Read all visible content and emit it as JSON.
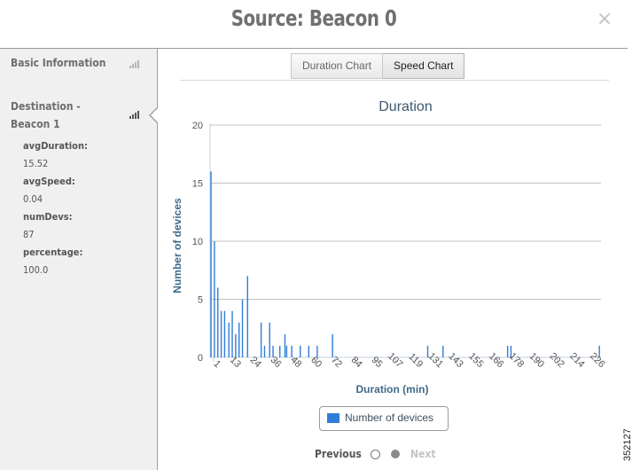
{
  "header": {
    "title": "Source: Beacon 0",
    "close_glyph": "×"
  },
  "sidebar": {
    "items": [
      {
        "label": "Basic Information",
        "icon": "signal-bars-icon",
        "active": false
      },
      {
        "label_line1": "Destination -",
        "label_line2": "Beacon 1",
        "icon": "signal-bars-icon",
        "active": true
      }
    ],
    "details": [
      {
        "key": "avgDuration:",
        "value": "15.52"
      },
      {
        "key": "avgSpeed:",
        "value": "0.04"
      },
      {
        "key": "numDevs:",
        "value": "87"
      },
      {
        "key": "percentage:",
        "value": "100.0"
      }
    ]
  },
  "tabs": [
    {
      "label": "Duration Chart",
      "active": false
    },
    {
      "label": "Speed Chart",
      "active": true
    }
  ],
  "chart_data": {
    "type": "bar",
    "title": "Duration",
    "xlabel": "Duration (min)",
    "ylabel": "Number of devices",
    "ylim": [
      0,
      20
    ],
    "yticks": [
      0,
      5,
      10,
      15,
      20
    ],
    "xlim": [
      0,
      230
    ],
    "xtick_labels": [
      1,
      13,
      24,
      36,
      48,
      60,
      72,
      84,
      95,
      107,
      119,
      131,
      143,
      155,
      166,
      178,
      190,
      202,
      214,
      226
    ],
    "grid": true,
    "color": "#2f7ed8",
    "series": [
      {
        "name": "Number of devices",
        "points": [
          {
            "x": 0.5,
            "y": 16
          },
          {
            "x": 2.5,
            "y": 10
          },
          {
            "x": 4.5,
            "y": 6
          },
          {
            "x": 6.5,
            "y": 4
          },
          {
            "x": 8.5,
            "y": 4
          },
          {
            "x": 11,
            "y": 3
          },
          {
            "x": 13,
            "y": 4
          },
          {
            "x": 15,
            "y": 2
          },
          {
            "x": 17,
            "y": 3
          },
          {
            "x": 19,
            "y": 5
          },
          {
            "x": 22,
            "y": 7
          },
          {
            "x": 30,
            "y": 3
          },
          {
            "x": 32,
            "y": 1
          },
          {
            "x": 35,
            "y": 3
          },
          {
            "x": 37,
            "y": 1
          },
          {
            "x": 41,
            "y": 1
          },
          {
            "x": 44,
            "y": 2
          },
          {
            "x": 45,
            "y": 1
          },
          {
            "x": 48,
            "y": 1
          },
          {
            "x": 53,
            "y": 1
          },
          {
            "x": 58,
            "y": 1
          },
          {
            "x": 63,
            "y": 1
          },
          {
            "x": 72,
            "y": 2
          },
          {
            "x": 128,
            "y": 1
          },
          {
            "x": 137,
            "y": 1
          },
          {
            "x": 175,
            "y": 1
          },
          {
            "x": 177,
            "y": 1
          },
          {
            "x": 229,
            "y": 1
          }
        ]
      }
    ],
    "legend": {
      "label": "Number of devices",
      "position": "bottom-center"
    }
  },
  "pager": {
    "previous_label": "Previous",
    "next_label": "Next",
    "current_page": 2,
    "total_pages": 2
  },
  "figure_id": "352127"
}
